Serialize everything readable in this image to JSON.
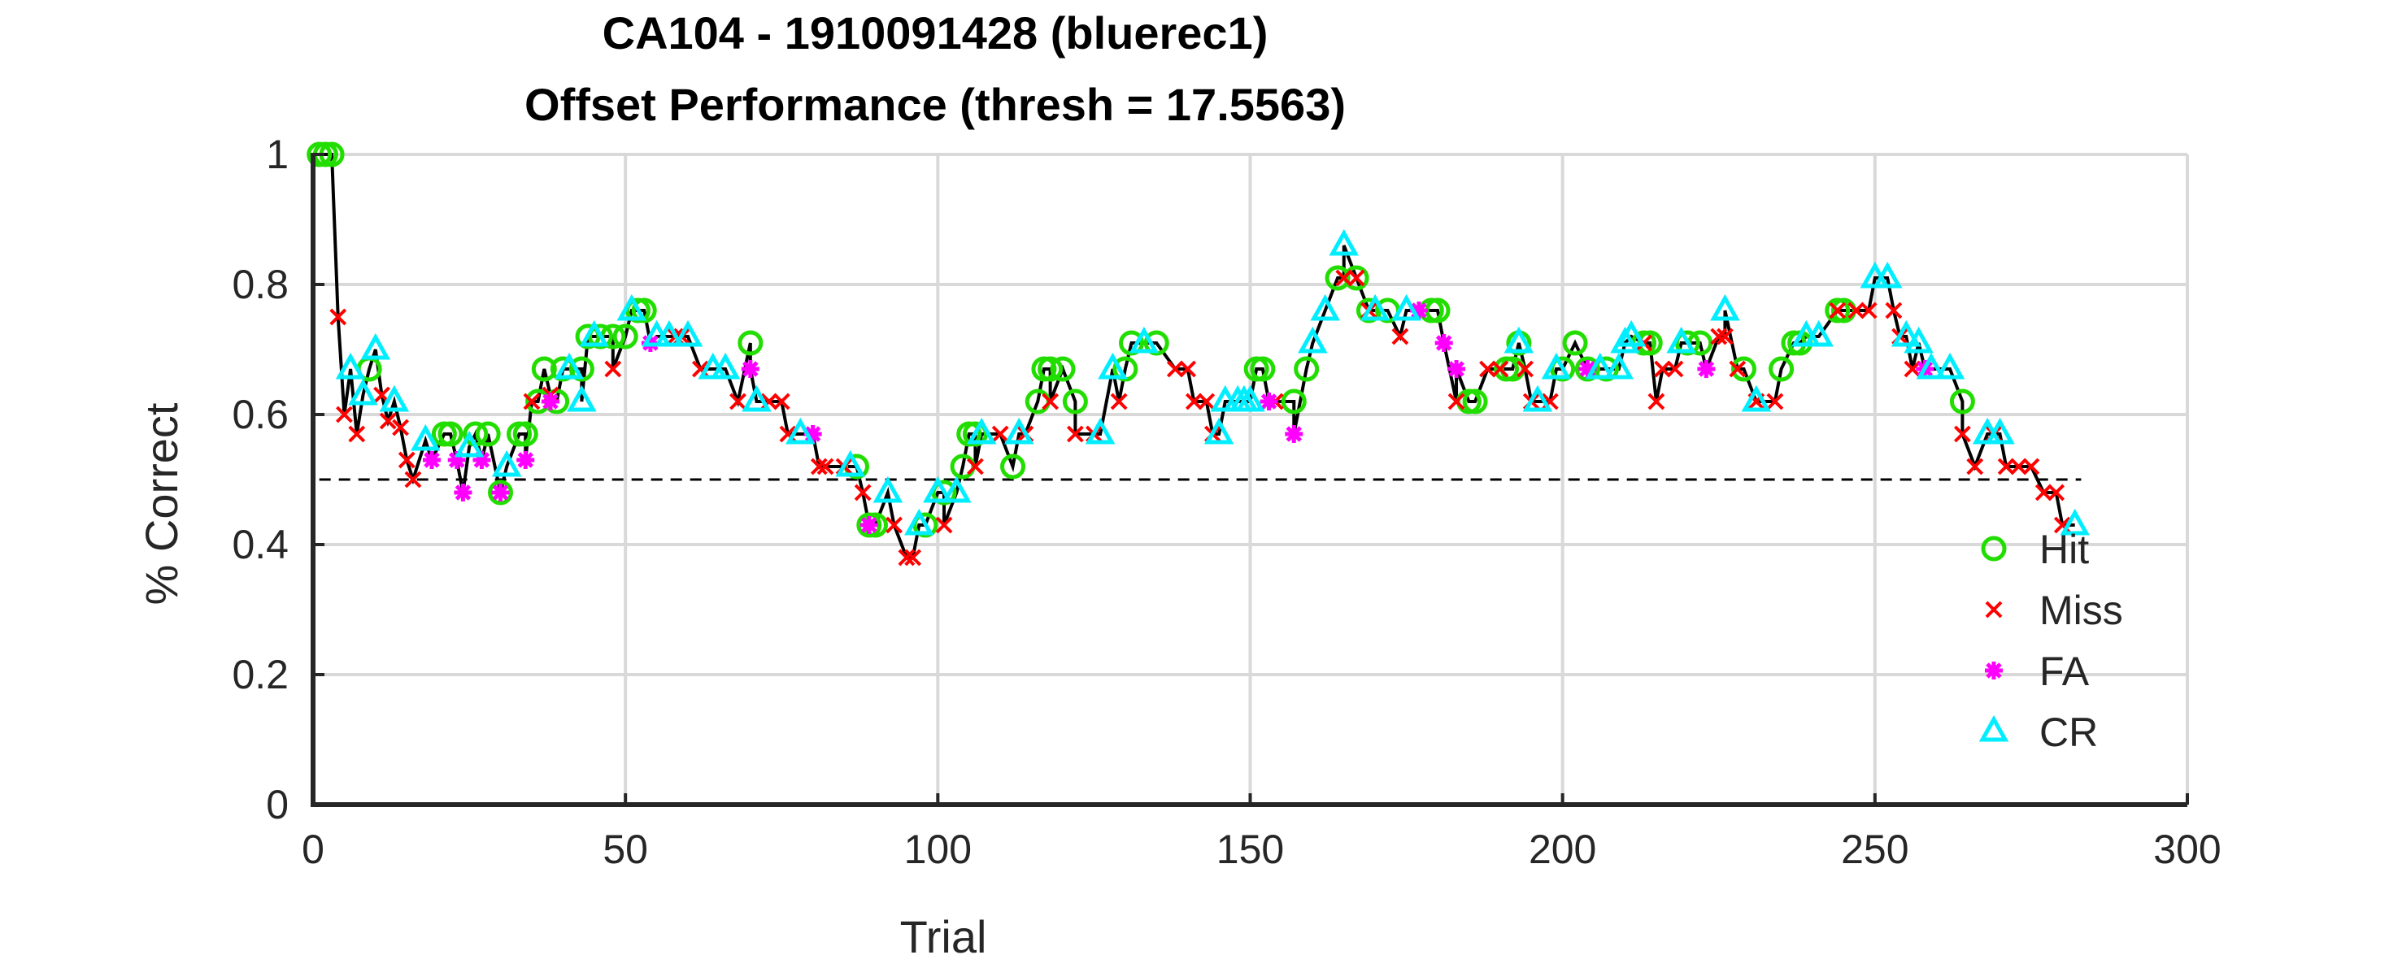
{
  "chart_data": {
    "type": "line",
    "title": "CA104 - 1910091428 (bluerec1)",
    "subtitle": "Offset Performance (thresh = 17.5563)",
    "xlabel": "Trial",
    "ylabel": "% Correct",
    "xlim": [
      0,
      300
    ],
    "ylim": [
      0,
      1
    ],
    "xticks": [
      0,
      50,
      100,
      150,
      200,
      250,
      300
    ],
    "yticks": [
      0,
      0.2,
      0.4,
      0.6,
      0.8,
      1
    ],
    "xtick_labels": [
      "0",
      "50",
      "100",
      "150",
      "200",
      "250",
      "300"
    ],
    "ytick_labels": [
      "0",
      "0.2",
      "0.4",
      "0.6",
      "0.8",
      "1"
    ],
    "grid": true,
    "legend_position": "lower-right",
    "chance_level": 0.5,
    "colors": {
      "line": "#000000",
      "Hit": "#22dd00",
      "Miss": "#ff0000",
      "FA": "#ff00ff",
      "CR": "#00eeff",
      "grid": "#d9d9d9"
    },
    "series": [
      {
        "name": "Hit",
        "marker": "circle",
        "points": [
          [
            1,
            1
          ],
          [
            2,
            1
          ],
          [
            3,
            1
          ],
          [
            9,
            0.67
          ],
          [
            21,
            0.57
          ],
          [
            22,
            0.57
          ],
          [
            26,
            0.57
          ],
          [
            28,
            0.57
          ],
          [
            30,
            0.48
          ],
          [
            33,
            0.57
          ],
          [
            34,
            0.57
          ],
          [
            36,
            0.62
          ],
          [
            37,
            0.67
          ],
          [
            39,
            0.62
          ],
          [
            40,
            0.67
          ],
          [
            43,
            0.67
          ],
          [
            44,
            0.72
          ],
          [
            46,
            0.72
          ],
          [
            48,
            0.72
          ],
          [
            50,
            0.72
          ],
          [
            52,
            0.76
          ],
          [
            53,
            0.76
          ],
          [
            70,
            0.71
          ],
          [
            87,
            0.52
          ],
          [
            89,
            0.43
          ],
          [
            90,
            0.43
          ],
          [
            98,
            0.43
          ],
          [
            101,
            0.48
          ],
          [
            104,
            0.52
          ],
          [
            105,
            0.57
          ],
          [
            106,
            0.57
          ],
          [
            112,
            0.52
          ],
          [
            116,
            0.62
          ],
          [
            117,
            0.67
          ],
          [
            118,
            0.67
          ],
          [
            120,
            0.67
          ],
          [
            122,
            0.62
          ],
          [
            130,
            0.67
          ],
          [
            131,
            0.71
          ],
          [
            135,
            0.71
          ],
          [
            151,
            0.67
          ],
          [
            152,
            0.67
          ],
          [
            157,
            0.62
          ],
          [
            159,
            0.67
          ],
          [
            164,
            0.81
          ],
          [
            167,
            0.81
          ],
          [
            169,
            0.76
          ],
          [
            172,
            0.76
          ],
          [
            179,
            0.76
          ],
          [
            180,
            0.76
          ],
          [
            185,
            0.62
          ],
          [
            186,
            0.62
          ],
          [
            191,
            0.67
          ],
          [
            192,
            0.67
          ],
          [
            193,
            0.71
          ],
          [
            200,
            0.67
          ],
          [
            202,
            0.71
          ],
          [
            204,
            0.67
          ],
          [
            207,
            0.67
          ],
          [
            213,
            0.71
          ],
          [
            214,
            0.71
          ],
          [
            220,
            0.71
          ],
          [
            222,
            0.71
          ],
          [
            229,
            0.67
          ],
          [
            235,
            0.67
          ],
          [
            237,
            0.71
          ],
          [
            238,
            0.71
          ],
          [
            244,
            0.76
          ],
          [
            245,
            0.76
          ],
          [
            264,
            0.62
          ]
        ]
      },
      {
        "name": "Miss",
        "marker": "x",
        "points": [
          [
            4,
            0.75
          ],
          [
            5,
            0.6
          ],
          [
            7,
            0.57
          ],
          [
            11,
            0.63
          ],
          [
            12,
            0.59
          ],
          [
            14,
            0.58
          ],
          [
            15,
            0.53
          ],
          [
            16,
            0.5
          ],
          [
            35,
            0.62
          ],
          [
            38,
            0.63
          ],
          [
            48,
            0.67
          ],
          [
            58,
            0.72
          ],
          [
            59,
            0.72
          ],
          [
            62,
            0.67
          ],
          [
            68,
            0.62
          ],
          [
            73,
            0.62
          ],
          [
            75,
            0.62
          ],
          [
            76,
            0.57
          ],
          [
            81,
            0.52
          ],
          [
            82,
            0.52
          ],
          [
            85,
            0.52
          ],
          [
            88,
            0.48
          ],
          [
            93,
            0.43
          ],
          [
            95,
            0.38
          ],
          [
            96,
            0.38
          ],
          [
            101,
            0.43
          ],
          [
            106,
            0.52
          ],
          [
            110,
            0.57
          ],
          [
            114,
            0.57
          ],
          [
            118,
            0.62
          ],
          [
            122,
            0.57
          ],
          [
            125,
            0.57
          ],
          [
            129,
            0.62
          ],
          [
            138,
            0.67
          ],
          [
            140,
            0.67
          ],
          [
            141,
            0.62
          ],
          [
            143,
            0.62
          ],
          [
            144,
            0.57
          ],
          [
            154,
            0.62
          ],
          [
            165,
            0.81
          ],
          [
            167,
            0.81
          ],
          [
            169,
            0.76
          ],
          [
            174,
            0.72
          ],
          [
            183,
            0.62
          ],
          [
            188,
            0.67
          ],
          [
            190,
            0.67
          ],
          [
            194,
            0.67
          ],
          [
            195,
            0.62
          ],
          [
            198,
            0.62
          ],
          [
            213,
            0.71
          ],
          [
            215,
            0.62
          ],
          [
            216,
            0.67
          ],
          [
            218,
            0.67
          ],
          [
            225,
            0.72
          ],
          [
            226,
            0.72
          ],
          [
            228,
            0.67
          ],
          [
            231,
            0.62
          ],
          [
            234,
            0.62
          ],
          [
            244,
            0.76
          ],
          [
            247,
            0.76
          ],
          [
            249,
            0.76
          ],
          [
            253,
            0.76
          ],
          [
            254,
            0.72
          ],
          [
            256,
            0.67
          ],
          [
            264,
            0.57
          ],
          [
            266,
            0.52
          ],
          [
            269,
            0.57
          ],
          [
            271,
            0.52
          ],
          [
            273,
            0.52
          ],
          [
            275,
            0.52
          ],
          [
            277,
            0.48
          ],
          [
            279,
            0.48
          ],
          [
            280,
            0.43
          ]
        ]
      },
      {
        "name": "FA",
        "marker": "asterisk",
        "points": [
          [
            19,
            0.53
          ],
          [
            23,
            0.53
          ],
          [
            24,
            0.48
          ],
          [
            27,
            0.53
          ],
          [
            30,
            0.48
          ],
          [
            34,
            0.53
          ],
          [
            38,
            0.62
          ],
          [
            54,
            0.71
          ],
          [
            70,
            0.67
          ],
          [
            80,
            0.57
          ],
          [
            89,
            0.43
          ],
          [
            153,
            0.62
          ],
          [
            157,
            0.57
          ],
          [
            177,
            0.76
          ],
          [
            181,
            0.71
          ],
          [
            183,
            0.67
          ],
          [
            204,
            0.67
          ],
          [
            223,
            0.67
          ],
          [
            258,
            0.67
          ]
        ]
      },
      {
        "name": "CR",
        "marker": "triangle",
        "points": [
          [
            6,
            0.67
          ],
          [
            8,
            0.63
          ],
          [
            10,
            0.7
          ],
          [
            13,
            0.62
          ],
          [
            18,
            0.56
          ],
          [
            25,
            0.55
          ],
          [
            31,
            0.52
          ],
          [
            41,
            0.67
          ],
          [
            43,
            0.62
          ],
          [
            45,
            0.72
          ],
          [
            51,
            0.76
          ],
          [
            55,
            0.72
          ],
          [
            57,
            0.72
          ],
          [
            60,
            0.72
          ],
          [
            64,
            0.67
          ],
          [
            66,
            0.67
          ],
          [
            71,
            0.62
          ],
          [
            78,
            0.57
          ],
          [
            86,
            0.52
          ],
          [
            92,
            0.48
          ],
          [
            97,
            0.43
          ],
          [
            100,
            0.48
          ],
          [
            103,
            0.48
          ],
          [
            107,
            0.57
          ],
          [
            113,
            0.57
          ],
          [
            126,
            0.57
          ],
          [
            128,
            0.67
          ],
          [
            133,
            0.71
          ],
          [
            145,
            0.57
          ],
          [
            146,
            0.62
          ],
          [
            148,
            0.62
          ],
          [
            149,
            0.62
          ],
          [
            150,
            0.62
          ],
          [
            160,
            0.71
          ],
          [
            162,
            0.76
          ],
          [
            165,
            0.86
          ],
          [
            170,
            0.76
          ],
          [
            175,
            0.76
          ],
          [
            193,
            0.71
          ],
          [
            196,
            0.62
          ],
          [
            199,
            0.67
          ],
          [
            206,
            0.67
          ],
          [
            209,
            0.67
          ],
          [
            210,
            0.71
          ],
          [
            211,
            0.72
          ],
          [
            219,
            0.71
          ],
          [
            226,
            0.76
          ],
          [
            231,
            0.62
          ],
          [
            239,
            0.72
          ],
          [
            241,
            0.72
          ],
          [
            250,
            0.81
          ],
          [
            252,
            0.81
          ],
          [
            255,
            0.72
          ],
          [
            257,
            0.71
          ],
          [
            259,
            0.67
          ],
          [
            262,
            0.67
          ],
          [
            268,
            0.57
          ],
          [
            270,
            0.57
          ],
          [
            282,
            0.43
          ]
        ]
      }
    ]
  }
}
